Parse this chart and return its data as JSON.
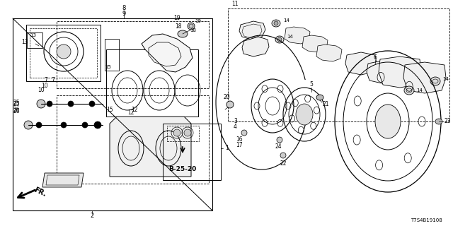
{
  "bg_color": "#ffffff",
  "diagram_code": "T7S4B19108",
  "reference_code": "B-25-20",
  "fig_w": 6.4,
  "fig_h": 3.2,
  "dpi": 100
}
